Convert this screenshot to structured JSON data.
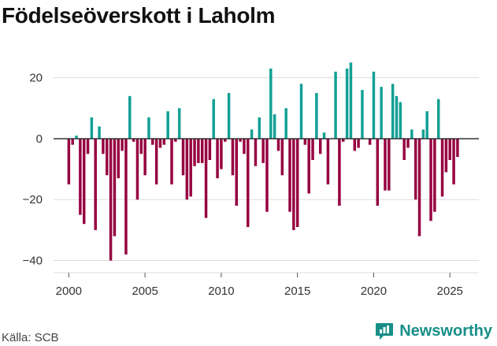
{
  "chart_data": {
    "type": "bar",
    "title": "Födelseöverskott i Laholm",
    "xlabel": "",
    "ylabel": "",
    "xlim": [
      1999.0,
      2026.9
    ],
    "ylim": [
      -44,
      30
    ],
    "x_ticks": [
      2000,
      2005,
      2010,
      2015,
      2020,
      2025
    ],
    "y_ticks": [
      -40,
      -20,
      0,
      20
    ],
    "y_tick_labels": [
      "−40",
      "−20",
      "0",
      "20"
    ],
    "bar_width": 0.18,
    "grid": true,
    "colors": {
      "positive": "#12a094",
      "negative": "#960040",
      "axis": "#333333",
      "grid": "#dddddd"
    },
    "values": [
      {
        "x": 2000.0,
        "y": -15
      },
      {
        "x": 2000.25,
        "y": -2
      },
      {
        "x": 2000.5,
        "y": 1
      },
      {
        "x": 2000.75,
        "y": -25
      },
      {
        "x": 2001.0,
        "y": -28
      },
      {
        "x": 2001.25,
        "y": -5
      },
      {
        "x": 2001.5,
        "y": 7
      },
      {
        "x": 2001.75,
        "y": -30
      },
      {
        "x": 2002.0,
        "y": 4
      },
      {
        "x": 2002.25,
        "y": -5
      },
      {
        "x": 2002.5,
        "y": -12
      },
      {
        "x": 2002.75,
        "y": -40
      },
      {
        "x": 2003.0,
        "y": -32
      },
      {
        "x": 2003.25,
        "y": -13
      },
      {
        "x": 2003.5,
        "y": -4
      },
      {
        "x": 2003.75,
        "y": -38
      },
      {
        "x": 2004.0,
        "y": 14
      },
      {
        "x": 2004.25,
        "y": -1
      },
      {
        "x": 2004.5,
        "y": -20
      },
      {
        "x": 2004.75,
        "y": -5
      },
      {
        "x": 2005.0,
        "y": -12
      },
      {
        "x": 2005.25,
        "y": 7
      },
      {
        "x": 2005.5,
        "y": -2
      },
      {
        "x": 2005.75,
        "y": -15
      },
      {
        "x": 2006.0,
        "y": -3
      },
      {
        "x": 2006.25,
        "y": -2
      },
      {
        "x": 2006.5,
        "y": 9
      },
      {
        "x": 2006.75,
        "y": -15
      },
      {
        "x": 2007.0,
        "y": -1
      },
      {
        "x": 2007.25,
        "y": 10
      },
      {
        "x": 2007.5,
        "y": -12
      },
      {
        "x": 2007.75,
        "y": -20
      },
      {
        "x": 2008.0,
        "y": -19
      },
      {
        "x": 2008.25,
        "y": -9
      },
      {
        "x": 2008.5,
        "y": -8
      },
      {
        "x": 2008.75,
        "y": -8
      },
      {
        "x": 2009.0,
        "y": -26
      },
      {
        "x": 2009.25,
        "y": -7
      },
      {
        "x": 2009.5,
        "y": 13
      },
      {
        "x": 2009.75,
        "y": -13
      },
      {
        "x": 2010.0,
        "y": -10
      },
      {
        "x": 2010.25,
        "y": -1
      },
      {
        "x": 2010.5,
        "y": 15
      },
      {
        "x": 2010.75,
        "y": -12
      },
      {
        "x": 2011.0,
        "y": -22
      },
      {
        "x": 2011.25,
        "y": -1
      },
      {
        "x": 2011.5,
        "y": -5
      },
      {
        "x": 2011.75,
        "y": -29
      },
      {
        "x": 2012.0,
        "y": 3
      },
      {
        "x": 2012.25,
        "y": -9
      },
      {
        "x": 2012.5,
        "y": 7
      },
      {
        "x": 2012.75,
        "y": -8
      },
      {
        "x": 2013.0,
        "y": -24
      },
      {
        "x": 2013.25,
        "y": 23
      },
      {
        "x": 2013.5,
        "y": 8
      },
      {
        "x": 2013.75,
        "y": -4
      },
      {
        "x": 2014.0,
        "y": -12
      },
      {
        "x": 2014.25,
        "y": 10
      },
      {
        "x": 2014.5,
        "y": -24
      },
      {
        "x": 2014.75,
        "y": -30
      },
      {
        "x": 2015.0,
        "y": -29
      },
      {
        "x": 2015.25,
        "y": 18
      },
      {
        "x": 2015.5,
        "y": -2
      },
      {
        "x": 2015.75,
        "y": -18
      },
      {
        "x": 2016.0,
        "y": -7
      },
      {
        "x": 2016.25,
        "y": 15
      },
      {
        "x": 2016.5,
        "y": -5
      },
      {
        "x": 2016.75,
        "y": 2
      },
      {
        "x": 2017.0,
        "y": -15
      },
      {
        "x": 2017.5,
        "y": 22
      },
      {
        "x": 2017.75,
        "y": -22
      },
      {
        "x": 2018.0,
        "y": -1
      },
      {
        "x": 2018.25,
        "y": 23
      },
      {
        "x": 2018.5,
        "y": 25
      },
      {
        "x": 2018.75,
        "y": -4
      },
      {
        "x": 2019.0,
        "y": -3
      },
      {
        "x": 2019.25,
        "y": 16
      },
      {
        "x": 2019.75,
        "y": -2
      },
      {
        "x": 2020.0,
        "y": 22
      },
      {
        "x": 2020.25,
        "y": -22
      },
      {
        "x": 2020.5,
        "y": 17
      },
      {
        "x": 2020.75,
        "y": -17
      },
      {
        "x": 2021.0,
        "y": -17
      },
      {
        "x": 2021.25,
        "y": 18
      },
      {
        "x": 2021.5,
        "y": 14
      },
      {
        "x": 2021.75,
        "y": 12
      },
      {
        "x": 2022.0,
        "y": -7
      },
      {
        "x": 2022.25,
        "y": -3
      },
      {
        "x": 2022.5,
        "y": 3
      },
      {
        "x": 2022.75,
        "y": -20
      },
      {
        "x": 2023.0,
        "y": -32
      },
      {
        "x": 2023.25,
        "y": 3
      },
      {
        "x": 2023.5,
        "y": 9
      },
      {
        "x": 2023.75,
        "y": -27
      },
      {
        "x": 2024.0,
        "y": -24
      },
      {
        "x": 2024.25,
        "y": 13
      },
      {
        "x": 2024.5,
        "y": -19
      },
      {
        "x": 2024.75,
        "y": -11
      },
      {
        "x": 2025.0,
        "y": -7
      },
      {
        "x": 2025.25,
        "y": -15
      },
      {
        "x": 2025.5,
        "y": -6
      }
    ]
  },
  "footer": {
    "source": "Källa: SCB",
    "brand": "Newsworthy"
  }
}
